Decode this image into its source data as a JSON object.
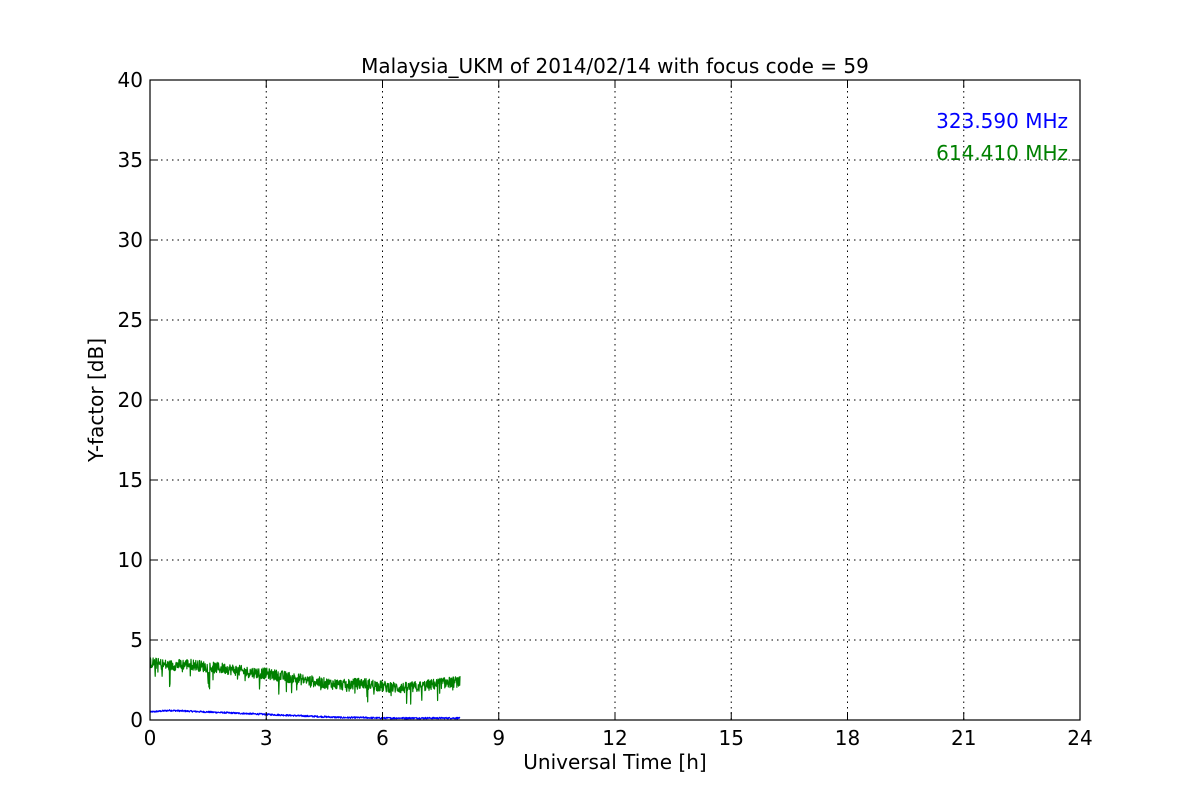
{
  "chart_data": {
    "type": "line",
    "title": "Malaysia_UKM of 2014/02/14 with focus code = 59",
    "xlabel": "Universal Time [h]",
    "ylabel": "Y-factor [dB]",
    "xlim": [
      0,
      24
    ],
    "ylim": [
      0,
      40
    ],
    "xticks": [
      0,
      3,
      6,
      9,
      12,
      15,
      18,
      21,
      24
    ],
    "yticks": [
      0,
      5,
      10,
      15,
      20,
      25,
      30,
      35,
      40
    ],
    "grid": true,
    "legend_position": "top-right",
    "series": [
      {
        "name": "323.590 MHz",
        "color": "#0000ff",
        "x": [
          0,
          0.5,
          1.0,
          1.5,
          2.0,
          2.5,
          3.0,
          3.5,
          4.0,
          4.5,
          5.0,
          5.5,
          6.0,
          6.5,
          7.0,
          7.5,
          8.0
        ],
        "y": [
          0.5,
          0.6,
          0.55,
          0.5,
          0.45,
          0.4,
          0.35,
          0.3,
          0.25,
          0.2,
          0.15,
          0.15,
          0.12,
          0.12,
          0.12,
          0.12,
          0.12
        ]
      },
      {
        "name": "614.410 MHz",
        "color": "#008000",
        "x": [
          0,
          0.5,
          1.0,
          1.5,
          2.0,
          2.5,
          3.0,
          3.5,
          4.0,
          4.5,
          5.0,
          5.5,
          6.0,
          6.5,
          7.0,
          7.5,
          8.0
        ],
        "y": [
          3.6,
          3.4,
          3.5,
          3.3,
          3.2,
          3.0,
          2.9,
          2.7,
          2.5,
          2.3,
          2.2,
          2.3,
          2.1,
          2.0,
          2.1,
          2.3,
          2.4
        ]
      }
    ]
  }
}
